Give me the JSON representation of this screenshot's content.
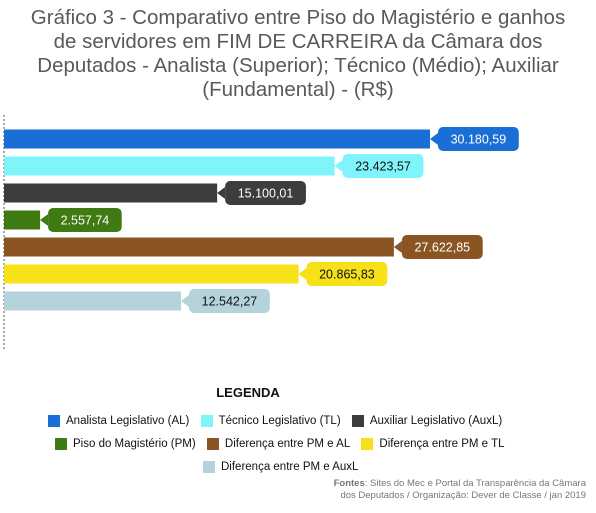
{
  "title_lines": [
    "Gráfico 3 - Comparativo entre Piso do Magistério e ganhos",
    "de servidores em FIM DE CARREIRA da Câmara dos",
    "Deputados - Analista (Superior); Técnico (Médio); Auxiliar",
    "(Fundamental) - (R$)"
  ],
  "chart_data": {
    "type": "bar",
    "orientation": "horizontal",
    "categories": [
      "Analista Legislativo (AL)",
      "Técnico Legislativo (TL)",
      "Auxiliar Legislativo (AuxL)",
      "Piso do Magistério (PM)",
      "Diferença entre PM e AL",
      "Diferença entre PM e TL",
      "Diferença entre PM e AuxL"
    ],
    "values": [
      30180.59,
      23423.57,
      15100.01,
      2557.74,
      27622.85,
      20865.83,
      12542.27
    ],
    "data_labels": [
      "30.180,59",
      "23.423,57",
      "15.100,01",
      "2.557,74",
      "27.622,85",
      "20.865,83",
      "12.542,27"
    ],
    "colors": [
      "#1a6fd6",
      "#7ff5fb",
      "#3d3d3d",
      "#3f7a12",
      "#8a5523",
      "#f7e119",
      "#b4d3da"
    ],
    "label_text_colors": [
      "#ffffff",
      "#111111",
      "#ffffff",
      "#ffffff",
      "#ffffff",
      "#111111",
      "#111111"
    ],
    "xlim": [
      0,
      32000
    ],
    "axis_line": "dashed",
    "legend": "bottom"
  },
  "legend_title": "LEGENDA",
  "legend": [
    {
      "label": "Analista Legislativo (AL)",
      "color": "#1a6fd6"
    },
    {
      "label": "Técnico Legislativo (TL)",
      "color": "#7ff5fb"
    },
    {
      "label": "Auxiliar Legislativo (AuxL)",
      "color": "#3d3d3d"
    },
    {
      "label": "Piso do Magistério (PM)",
      "color": "#3f7a12"
    },
    {
      "label": "Diferença entre PM e AL",
      "color": "#8a5523"
    },
    {
      "label": "Diferença entre PM e TL",
      "color": "#f7e119"
    },
    {
      "label": "Diferença entre PM e AuxL",
      "color": "#b4d3da"
    }
  ],
  "source": {
    "prefix": "Fontes",
    "line1": ": Sites do Mec e Portal da Transparência da Câmara",
    "line2": "dos Deputados / Organização: Dever de Classe / jan 2019"
  }
}
